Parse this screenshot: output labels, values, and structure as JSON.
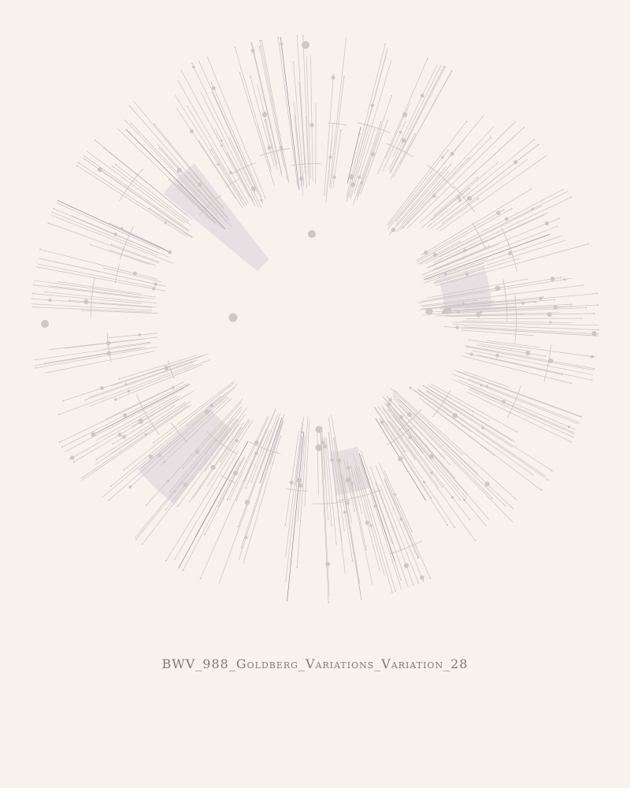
{
  "caption": "BWV_988_Goldberg_Variations_Variation_28",
  "colors": {
    "background": "#f8f2ed",
    "line": "#c9c4c1",
    "dot": "#cdc8c5",
    "wedge": "#e3dde0",
    "dark_line": "#8f8a95",
    "caption": "#7e7a78"
  }
}
